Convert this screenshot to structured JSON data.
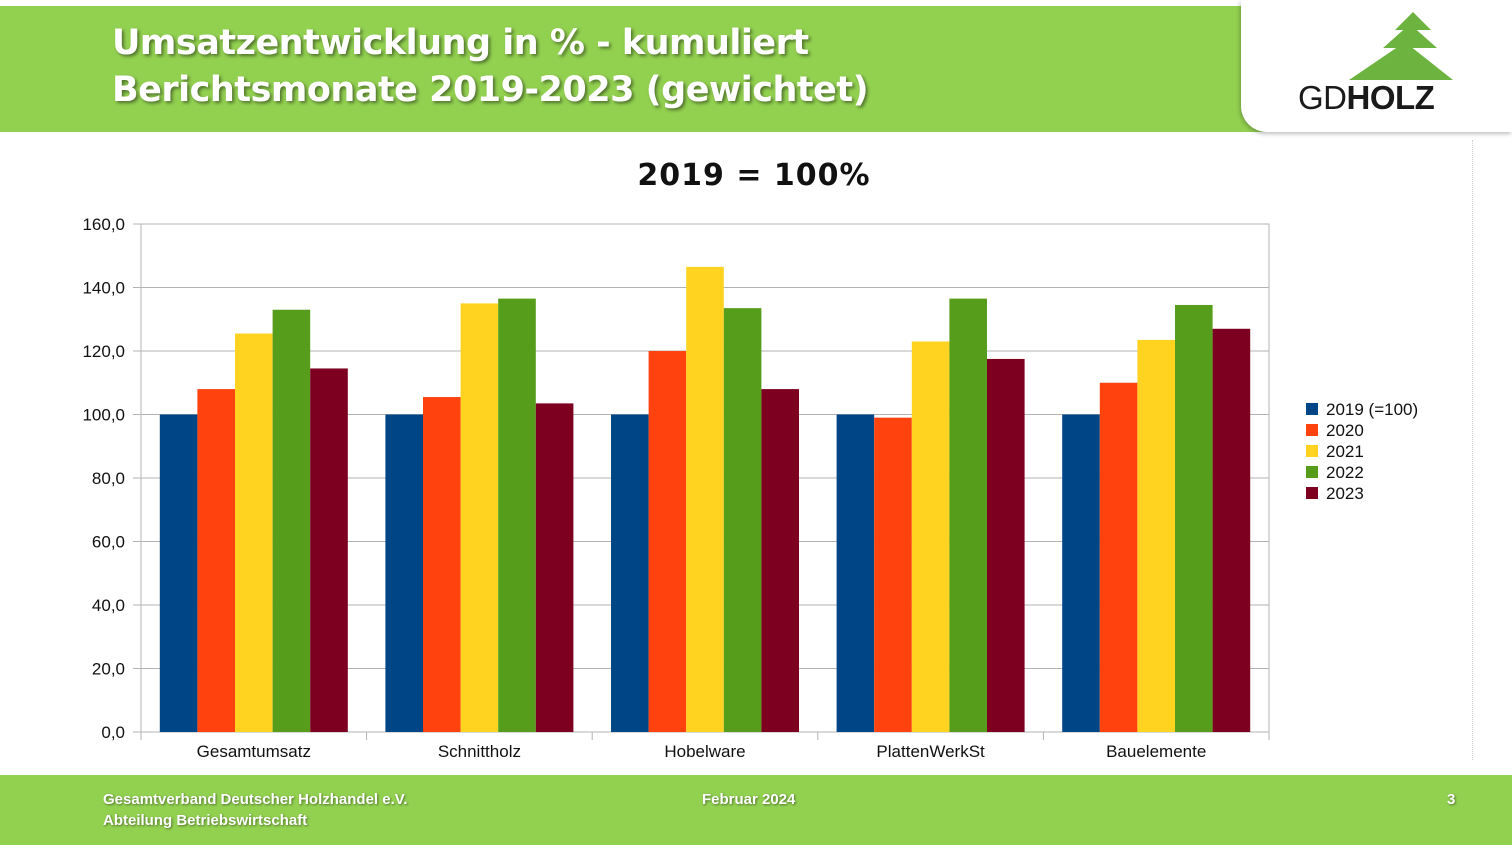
{
  "header": {
    "title_line1": "Umsatzentwicklung in % - kumuliert",
    "title_line2": "Berichtsmonate 2019-2023 (gewichtet)"
  },
  "logo": {
    "text_light": "GD",
    "text_bold": "HOLZ",
    "tree_color": "#6cb33f"
  },
  "footer": {
    "org_line1": "Gesamtverband Deutscher Holzhandel e.V.",
    "org_line2": "Abteilung Betriebswirtschaft",
    "date": "Februar 2024",
    "page_number": "3"
  },
  "colors": {
    "header_bg": "#92d050"
  },
  "chart_data": {
    "type": "bar",
    "title": "2019 = 100%",
    "xlabel": "",
    "ylabel": "",
    "categories": [
      "Gesamtumsatz",
      "Schnittholz",
      "Hobelware",
      "PlattenWerkSt",
      "Bauelemente"
    ],
    "ylim": [
      0,
      160
    ],
    "yticks": [
      "0,0",
      "20,0",
      "40,0",
      "60,0",
      "80,0",
      "100,0",
      "120,0",
      "140,0",
      "160,0"
    ],
    "grid": true,
    "legend_position": "right",
    "series": [
      {
        "name": "2019 (=100)",
        "color": "#004586",
        "values": [
          100,
          100,
          100,
          100,
          100
        ]
      },
      {
        "name": "2020",
        "color": "#ff420e",
        "values": [
          108,
          105.5,
          120,
          99,
          110
        ]
      },
      {
        "name": "2021",
        "color": "#ffd320",
        "values": [
          125.5,
          135,
          146.5,
          123,
          123.5
        ]
      },
      {
        "name": "2022",
        "color": "#579d1c",
        "values": [
          133,
          136.5,
          133.5,
          136.5,
          134.5
        ]
      },
      {
        "name": "2023",
        "color": "#7e0021",
        "values": [
          114.5,
          103.5,
          108,
          117.5,
          127
        ]
      }
    ]
  }
}
